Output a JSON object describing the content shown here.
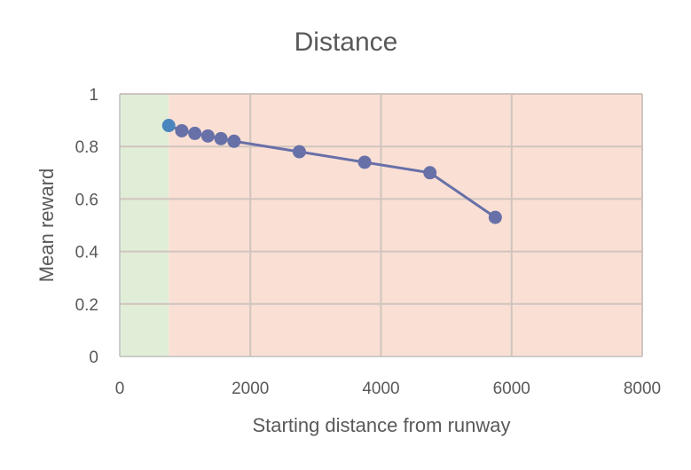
{
  "chart_data": {
    "type": "line",
    "title": "Distance",
    "xlabel": "Starting distance from runway",
    "ylabel": "Mean reward",
    "xlim": [
      0,
      8000
    ],
    "ylim": [
      0,
      1
    ],
    "x_ticks": [
      0,
      2000,
      4000,
      6000,
      8000
    ],
    "y_ticks": [
      0,
      0.2,
      0.4,
      0.6,
      0.8,
      1
    ],
    "grid": true,
    "legend": "none",
    "series": [
      {
        "x": [
          750,
          950,
          1150,
          1350,
          1550,
          1750,
          2750,
          3750,
          4750,
          5750
        ],
        "y": [
          0.88,
          0.86,
          0.85,
          0.84,
          0.83,
          0.82,
          0.78,
          0.74,
          0.7,
          0.53
        ],
        "color": "#6870a8"
      }
    ],
    "shaded_regions": [
      {
        "x_range": [
          0,
          750
        ],
        "color": "#e0eed8"
      },
      {
        "x_range": [
          750,
          8000
        ],
        "color": "#fae0d4"
      }
    ],
    "highlight_point": {
      "x": 750,
      "y": 0.88,
      "color": "#4a86bd"
    }
  }
}
